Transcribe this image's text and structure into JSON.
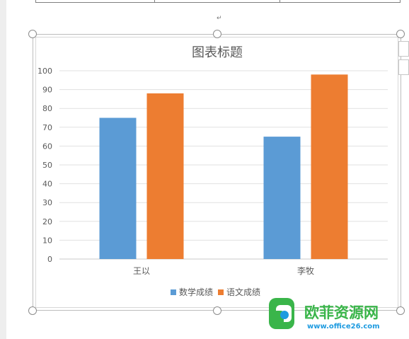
{
  "document": {
    "paragraph_mark": "↵"
  },
  "chart_data": {
    "type": "bar",
    "title": "图表标题",
    "categories": [
      "王以",
      "李牧"
    ],
    "series": [
      {
        "name": "数学成绩",
        "values": [
          75,
          65
        ],
        "color": "#5b9bd5"
      },
      {
        "name": "语文成绩",
        "values": [
          88,
          98
        ],
        "color": "#ed7d31"
      }
    ],
    "ylim": [
      0,
      100
    ],
    "yticks": [
      0,
      10,
      20,
      30,
      40,
      50,
      60,
      70,
      80,
      90,
      100
    ],
    "grid": true,
    "legend": "bottom",
    "xlabel": "",
    "ylabel": ""
  },
  "watermark": {
    "brand": "欧菲资源网",
    "url": "www.office26.com",
    "colors": {
      "green": "#3ab54a",
      "blue": "#1e9be0"
    }
  }
}
